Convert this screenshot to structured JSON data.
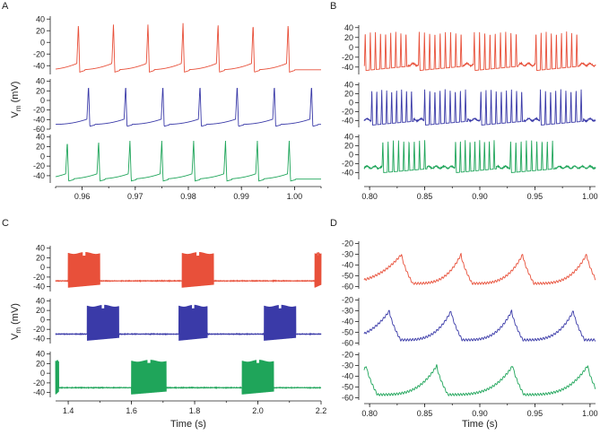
{
  "chart_data": [
    {
      "type": "line",
      "panel": "A",
      "ylabel": "V_m (mV)",
      "ylabel_main": "V",
      "ylabel_sub": "m",
      "ylabel_unit": " (mV)",
      "xlabel": "",
      "xlim": [
        0.955,
        1.005
      ],
      "xticks": [
        0.96,
        0.97,
        0.98,
        0.99,
        1.0
      ],
      "xtick_labels": [
        "0.96",
        "0.97",
        "0.98",
        "0.99",
        "1.00"
      ],
      "series": [
        {
          "name": "red",
          "color": "#e8503a",
          "ylim": [
            -55,
            45
          ],
          "yticks": [
            40,
            20,
            0,
            -20,
            -40
          ],
          "ytick_labels": [
            "40",
            "20",
            "0",
            "-20",
            "-40"
          ],
          "pattern": "regular",
          "rest": -47,
          "peak": 33,
          "spike_times": [
            0.9593,
            0.9659,
            0.9724,
            0.979,
            0.9856,
            0.9922,
            0.9988
          ]
        },
        {
          "name": "blue",
          "color": "#3a3aa8",
          "ylim": [
            -60,
            45
          ],
          "yticks": [
            40,
            20,
            0,
            -20,
            -40,
            -60
          ],
          "ytick_labels": [
            "40",
            "20",
            "0",
            "-20",
            "-40",
            "-60"
          ],
          "pattern": "regular",
          "rest": -50,
          "peak": 33,
          "spike_times": [
            0.9612,
            0.9682,
            0.9752,
            0.9822,
            0.9892,
            0.9962,
            1.0032
          ]
        },
        {
          "name": "green",
          "color": "#1fa55a",
          "ylim": [
            -55,
            45
          ],
          "yticks": [
            40,
            20,
            0,
            -20,
            -40
          ],
          "ytick_labels": [
            "40",
            "20",
            "0",
            "-20",
            "-40"
          ],
          "pattern": "regular",
          "rest": -47,
          "peak": 32,
          "spike_times": [
            0.9572,
            0.9631,
            0.969,
            0.975,
            0.981,
            0.987,
            0.993,
            0.999
          ]
        }
      ]
    },
    {
      "type": "line",
      "panel": "B",
      "ylabel": "",
      "xlabel": "",
      "xlim": [
        0.795,
        1.005
      ],
      "xticks": [
        0.8,
        0.85,
        0.9,
        0.95,
        1.0
      ],
      "xtick_labels": [
        "0.80",
        "0.85",
        "0.90",
        "0.95",
        "1.00"
      ],
      "series": [
        {
          "name": "red",
          "color": "#e8503a",
          "ylim": [
            -55,
            45
          ],
          "yticks": [
            40,
            20,
            0,
            -20,
            -40
          ],
          "ytick_labels": [
            "40",
            "20",
            "0",
            "-20",
            "-40"
          ],
          "pattern": "bursts",
          "rest": -35,
          "peak": 32,
          "bursts": [
            [
              0.796,
              0.833
            ],
            [
              0.845,
              0.883
            ],
            [
              0.895,
              0.933
            ],
            [
              0.951,
              0.988
            ]
          ],
          "spikes_per_burst": 9
        },
        {
          "name": "blue",
          "color": "#3a3aa8",
          "ylim": [
            -55,
            45
          ],
          "yticks": [
            40,
            20,
            0,
            -20,
            -40
          ],
          "ytick_labels": [
            "40",
            "20",
            "0",
            "-20",
            "-40"
          ],
          "pattern": "bursts",
          "rest": -38,
          "peak": 30,
          "bursts": [
            [
              0.802,
              0.838
            ],
            [
              0.85,
              0.887
            ],
            [
              0.901,
              0.938
            ],
            [
              0.955,
              0.992
            ]
          ],
          "spikes_per_burst": 9
        },
        {
          "name": "green",
          "color": "#1fa55a",
          "ylim": [
            -55,
            45
          ],
          "yticks": [
            40,
            20,
            0,
            -20,
            -40
          ],
          "ytick_labels": [
            "40",
            "20",
            "0",
            "-20",
            "-40"
          ],
          "pattern": "bursts",
          "rest": -28,
          "peak": 33,
          "bursts": [
            [
              0.812,
              0.85
            ],
            [
              0.878,
              0.913
            ],
            [
              0.928,
              0.966
            ]
          ],
          "spikes_per_burst": 9
        }
      ]
    },
    {
      "type": "line",
      "panel": "C",
      "ylabel": "V_m (mV)",
      "ylabel_main": "V",
      "ylabel_sub": "m",
      "ylabel_unit": " (mV)",
      "xlabel": "Time (s)",
      "xlim": [
        1.36,
        2.2
      ],
      "xticks": [
        1.4,
        1.6,
        1.8,
        2.0,
        2.2
      ],
      "xtick_labels": [
        "1.4",
        "1.6",
        "1.8",
        "2.0",
        "2.2"
      ],
      "series": [
        {
          "name": "red",
          "color": "#e8503a",
          "ylim": [
            -50,
            45
          ],
          "yticks": [
            40,
            20,
            0,
            -20,
            -40
          ],
          "ytick_labels": [
            "40",
            "20",
            "0",
            "-20",
            "-40"
          ],
          "pattern": "dense",
          "rest": -28,
          "peak": 30,
          "bursts": [
            [
              1.4,
              1.5
            ],
            [
              1.76,
              1.86
            ],
            [
              2.18,
              2.2
            ]
          ]
        },
        {
          "name": "blue",
          "color": "#3a3aa8",
          "ylim": [
            -50,
            45
          ],
          "yticks": [
            40,
            20,
            0,
            -20,
            -40
          ],
          "ytick_labels": [
            "40",
            "20",
            "0",
            "-20",
            "-40"
          ],
          "pattern": "dense",
          "rest": -30,
          "peak": 30,
          "bursts": [
            [
              1.46,
              1.56
            ],
            [
              1.75,
              1.84
            ],
            [
              2.02,
              2.12
            ]
          ]
        },
        {
          "name": "green",
          "color": "#1fa55a",
          "ylim": [
            -50,
            45
          ],
          "yticks": [
            40,
            20,
            0,
            -20,
            -40
          ],
          "ytick_labels": [
            "40",
            "20",
            "0",
            "-20",
            "-40"
          ],
          "pattern": "dense",
          "rest": -30,
          "peak": 26,
          "bursts": [
            [
              1.36,
              1.37
            ],
            [
              1.6,
              1.71
            ],
            [
              1.95,
              2.05
            ]
          ]
        }
      ]
    },
    {
      "type": "line",
      "panel": "D",
      "ylabel": "",
      "xlabel": "Time (s)",
      "xlim": [
        0.795,
        1.005
      ],
      "xticks": [
        0.8,
        0.85,
        0.9,
        0.95,
        1.0
      ],
      "xtick_labels": [
        "0.80",
        "0.85",
        "0.90",
        "0.95",
        "1.00"
      ],
      "series": [
        {
          "name": "red",
          "color": "#e8503a",
          "ylim": [
            -62,
            -18
          ],
          "yticks": [
            -20,
            -30,
            -40,
            -50,
            -60
          ],
          "ytick_labels": [
            "-20",
            "-30",
            "-40",
            "-50",
            "-60"
          ],
          "pattern": "slow",
          "rest": -57,
          "peak": -30,
          "peak_times": [
            0.829,
            0.883,
            0.939,
            0.997
          ]
        },
        {
          "name": "blue",
          "color": "#3a3aa8",
          "ylim": [
            -62,
            -18
          ],
          "yticks": [
            -20,
            -30,
            -40,
            -50,
            -60
          ],
          "ytick_labels": [
            "-20",
            "-30",
            "-40",
            "-50",
            "-60"
          ],
          "pattern": "slow",
          "rest": -57,
          "peak": -30,
          "peak_times": [
            0.818,
            0.874,
            0.929,
            0.985
          ]
        },
        {
          "name": "green",
          "color": "#1fa55a",
          "ylim": [
            -62,
            -18
          ],
          "yticks": [
            -20,
            -30,
            -40,
            -50,
            -60
          ],
          "ytick_labels": [
            "-20",
            "-30",
            "-40",
            "-50",
            "-60"
          ],
          "pattern": "slow",
          "rest": -57,
          "peak": -30,
          "peak_times": [
            0.797,
            0.861,
            0.93,
            0.998
          ]
        }
      ]
    }
  ]
}
